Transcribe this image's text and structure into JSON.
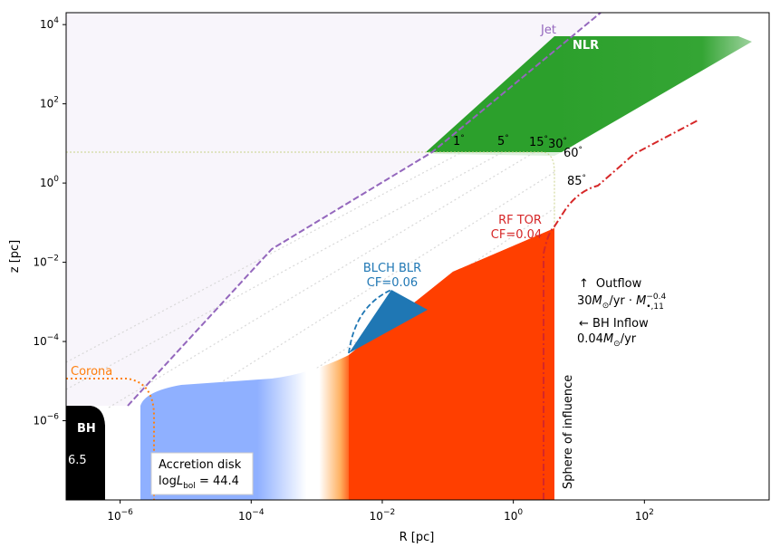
{
  "chart_data": {
    "type": "diagram",
    "xlabel": "R [pc]",
    "ylabel": "z [pc]",
    "xscale": "log",
    "yscale": "log",
    "xlim": [
      1.5e-07,
      8000
    ],
    "ylim": [
      1e-08,
      20000
    ],
    "x_ticks": [
      {
        "base": "10",
        "exp": "−6",
        "value": 1e-06
      },
      {
        "base": "10",
        "exp": "−4",
        "value": 0.0001
      },
      {
        "base": "10",
        "exp": "−2",
        "value": 0.01
      },
      {
        "base": "10",
        "exp": "0",
        "value": 1
      },
      {
        "base": "10",
        "exp": "2",
        "value": 100
      }
    ],
    "y_ticks": [
      {
        "base": "10",
        "exp": "−6",
        "value": 1e-06
      },
      {
        "base": "10",
        "exp": "−4",
        "value": 0.0001
      },
      {
        "base": "10",
        "exp": "−2",
        "value": 0.01
      },
      {
        "base": "10",
        "exp": "0",
        "value": 1
      },
      {
        "base": "10",
        "exp": "2",
        "value": 100
      },
      {
        "base": "10",
        "exp": "4",
        "value": 10000
      }
    ],
    "labels": {
      "jet": "Jet",
      "nlr": "NLR",
      "corona": "Corona",
      "bh": "BH",
      "bh_mass": "= 6.5",
      "blr_title": "BLCH BLR",
      "blr_cf": "CF=0.06",
      "tor_title": "RF TOR",
      "tor_cf": "CF=0.04",
      "disk_line1": "Accretion disk",
      "disk_line2_prefix": "log",
      "disk_line2_sub": "bol",
      "disk_line2_suffix": " = 44.4",
      "sphere": "Sphere of influence",
      "outflow_arrow": "↑",
      "outflow_label": "Outflow",
      "outflow_rate": "30",
      "outflow_rate_exp": "−0.4",
      "outflow_rate_sub": "•,11",
      "inflow_label": "← BH Inflow",
      "inflow_rate": "0.04"
    },
    "angles": [
      {
        "label": "1",
        "deg_symbol": "°"
      },
      {
        "label": "5",
        "deg_symbol": "°"
      },
      {
        "label": "15",
        "deg_symbol": "°"
      },
      {
        "label": "30",
        "deg_symbol": "°"
      },
      {
        "label": "60",
        "deg_symbol": "°"
      },
      {
        "label": "85",
        "deg_symbol": "°"
      }
    ],
    "colors": {
      "jet": "#9467bd",
      "nlr": "#2ca02c",
      "corona": "#ff7f0e",
      "blr": "#1f77b4",
      "torus_fill": "#ff3f00",
      "torus_line": "#d62728",
      "disk": "#8fb0ff",
      "bh": "#000000",
      "background": "#f8f5fb"
    }
  }
}
